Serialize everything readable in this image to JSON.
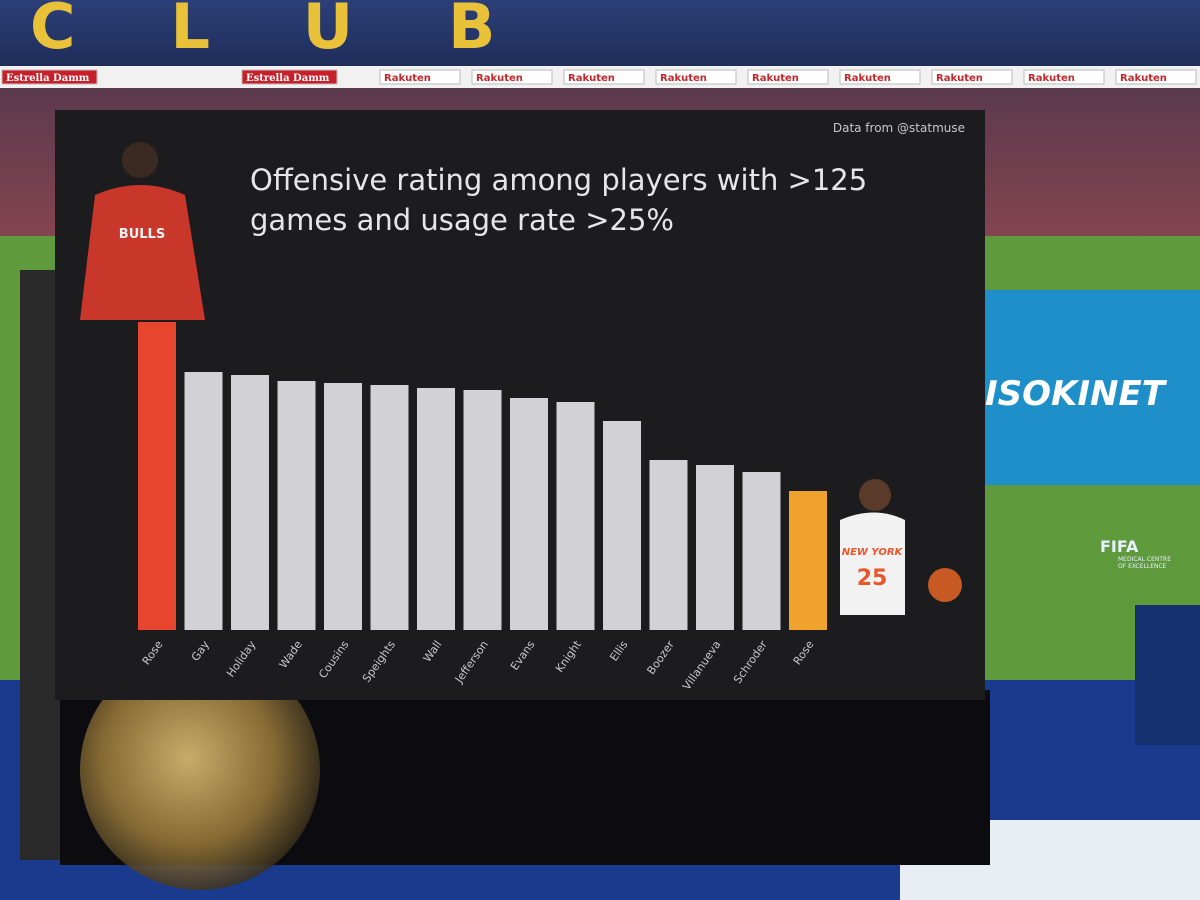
{
  "scene": {
    "stadium_letters": "CLUB",
    "banners": [
      "Estrella Damm",
      "Estrella Damm",
      "Rakuten",
      "Rakuten",
      "Rakuten",
      "Rakuten",
      "Rakuten",
      "Rakuten",
      "Rakuten",
      "Rakuten",
      "Rakuten"
    ],
    "sign": "ISOKINET",
    "fifa_logo": "FIFA",
    "fifa_caption": "MEDICAL CENTRE OF EXCELLENCE",
    "left_jersey": "BULLS",
    "right_jersey": "NEW YORK",
    "right_number": "25"
  },
  "chart_data": {
    "type": "bar",
    "source": "Data from @statmuse",
    "title": "Offensive rating among players with >125 games and usage rate >25%",
    "categories": [
      "Rose",
      "Gay",
      "Holiday",
      "Wade",
      "Cousins",
      "Speights",
      "Wall",
      "Jefferson",
      "Evans",
      "Knight",
      "Ellis",
      "Boozer",
      "Villanueva",
      "Schroder",
      "Rose"
    ],
    "values": [
      308,
      258,
      255,
      249,
      247,
      245,
      242,
      240,
      232,
      228,
      209,
      170,
      165,
      158,
      139
    ],
    "colors": [
      "#e8452f",
      "#d2d2d6",
      "#d2d2d6",
      "#d2d2d6",
      "#d2d2d6",
      "#d2d2d6",
      "#d2d2d6",
      "#d2d2d6",
      "#d2d2d6",
      "#d2d2d6",
      "#d2d2d6",
      "#d2d2d6",
      "#d2d2d6",
      "#d2d2d6",
      "#f0a32c"
    ]
  }
}
